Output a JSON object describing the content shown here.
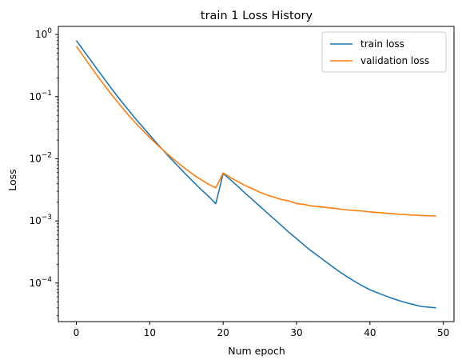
{
  "chart_data": {
    "type": "line",
    "title": "train 1 Loss History",
    "xlabel": "Num epoch",
    "ylabel": "Loss",
    "yscale": "log",
    "xlim": [
      -2.45,
      51.45
    ],
    "ylim": [
      2.4e-05,
      1.35
    ],
    "x_ticks": [
      0,
      10,
      20,
      30,
      40,
      50
    ],
    "x_tick_labels": [
      "0",
      "10",
      "20",
      "30",
      "40",
      "50"
    ],
    "y_ticks": [
      0.0001,
      0.001,
      0.01,
      0.1,
      1
    ],
    "y_tick_labels": [
      {
        "base": "10",
        "exp": "−4"
      },
      {
        "base": "10",
        "exp": "−3"
      },
      {
        "base": "10",
        "exp": "−2"
      },
      {
        "base": "10",
        "exp": "−1"
      },
      {
        "base": "10",
        "exp": "0"
      }
    ],
    "grid": false,
    "legend_position": "top-right",
    "x": [
      0,
      1,
      2,
      3,
      4,
      5,
      6,
      7,
      8,
      9,
      10,
      11,
      12,
      13,
      14,
      15,
      16,
      17,
      18,
      19,
      20,
      21,
      22,
      23,
      24,
      25,
      26,
      27,
      28,
      29,
      30,
      31,
      32,
      33,
      34,
      35,
      36,
      37,
      38,
      39,
      40,
      41,
      42,
      43,
      44,
      45,
      46,
      47,
      48,
      49
    ],
    "series": [
      {
        "name": "train loss",
        "color": "#1f77b4",
        "values": [
          0.8,
          0.55,
          0.38,
          0.26,
          0.18,
          0.125,
          0.088,
          0.063,
          0.045,
          0.033,
          0.024,
          0.0176,
          0.013,
          0.0097,
          0.0073,
          0.0055,
          0.0042,
          0.0032,
          0.0025,
          0.0019,
          0.0058,
          0.0046,
          0.0036,
          0.0028,
          0.0022,
          0.00172,
          0.00135,
          0.00106,
          0.00083,
          0.00065,
          0.00052,
          0.00041,
          0.00033,
          0.00027,
          0.00022,
          0.00018,
          0.000148,
          0.000124,
          0.000105,
          9e-05,
          7.8e-05,
          7e-05,
          6.3e-05,
          5.7e-05,
          5.2e-05,
          4.8e-05,
          4.5e-05,
          4.2e-05,
          4.1e-05,
          4e-05
        ]
      },
      {
        "name": "validation loss",
        "color": "#ff7f0e",
        "values": [
          0.65,
          0.44,
          0.3,
          0.205,
          0.143,
          0.101,
          0.072,
          0.052,
          0.0385,
          0.029,
          0.022,
          0.0169,
          0.0132,
          0.0104,
          0.0083,
          0.0067,
          0.0055,
          0.0046,
          0.0039,
          0.0034,
          0.0059,
          0.005,
          0.0043,
          0.0037,
          0.0033,
          0.0029,
          0.0026,
          0.0024,
          0.0022,
          0.0021,
          0.0019,
          0.00185,
          0.00175,
          0.0017,
          0.00165,
          0.0016,
          0.00155,
          0.0015,
          0.00147,
          0.00144,
          0.0014,
          0.00137,
          0.00134,
          0.00131,
          0.00128,
          0.00126,
          0.00124,
          0.00122,
          0.00121,
          0.0012
        ]
      }
    ]
  }
}
